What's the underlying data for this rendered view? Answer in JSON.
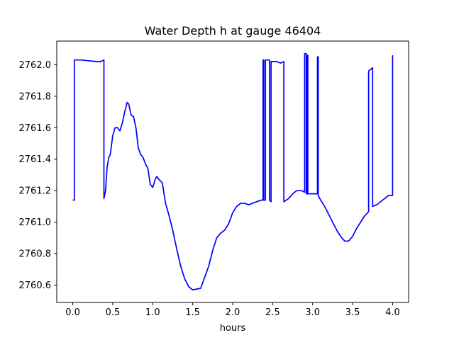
{
  "chart_data": {
    "type": "line",
    "title": "Water Depth h at gauge 46404",
    "xlabel": "hours",
    "ylabel": "",
    "xlim": [
      -0.2,
      4.2
    ],
    "ylim": [
      2760.49,
      2762.15
    ],
    "x_ticks": [
      0.0,
      0.5,
      1.0,
      1.5,
      2.0,
      2.5,
      3.0,
      3.5,
      4.0
    ],
    "x_tick_labels": [
      "0.0",
      "0.5",
      "1.0",
      "1.5",
      "2.0",
      "2.5",
      "3.0",
      "3.5",
      "4.0"
    ],
    "y_ticks": [
      2760.6,
      2760.8,
      2761.0,
      2761.2,
      2761.4,
      2761.6,
      2761.8,
      2762.0
    ],
    "y_tick_labels": [
      "2760.6",
      "2760.8",
      "2761.0",
      "2761.2",
      "2761.4",
      "2761.6",
      "2761.8",
      "2762.0"
    ],
    "grid": false,
    "series": [
      {
        "color": "#0000ff",
        "points": [
          [
            0.0,
            2761.14
          ],
          [
            0.02,
            2761.14
          ],
          [
            0.02,
            2762.03
          ],
          [
            0.1,
            2762.03
          ],
          [
            0.2,
            2762.025
          ],
          [
            0.3,
            2762.02
          ],
          [
            0.35,
            2762.02
          ],
          [
            0.39,
            2762.03
          ],
          [
            0.39,
            2761.15
          ],
          [
            0.41,
            2761.2
          ],
          [
            0.43,
            2761.35
          ],
          [
            0.45,
            2761.41
          ],
          [
            0.47,
            2761.43
          ],
          [
            0.5,
            2761.55
          ],
          [
            0.53,
            2761.6
          ],
          [
            0.56,
            2761.6
          ],
          [
            0.59,
            2761.58
          ],
          [
            0.62,
            2761.63
          ],
          [
            0.65,
            2761.7
          ],
          [
            0.68,
            2761.76
          ],
          [
            0.7,
            2761.75
          ],
          [
            0.73,
            2761.68
          ],
          [
            0.76,
            2761.67
          ],
          [
            0.79,
            2761.6
          ],
          [
            0.82,
            2761.47
          ],
          [
            0.85,
            2761.43
          ],
          [
            0.88,
            2761.41
          ],
          [
            0.91,
            2761.37
          ],
          [
            0.94,
            2761.34
          ],
          [
            0.97,
            2761.24
          ],
          [
            1.0,
            2761.22
          ],
          [
            1.03,
            2761.27
          ],
          [
            1.05,
            2761.29
          ],
          [
            1.08,
            2761.27
          ],
          [
            1.12,
            2761.25
          ],
          [
            1.16,
            2761.12
          ],
          [
            1.2,
            2761.05
          ],
          [
            1.25,
            2760.95
          ],
          [
            1.3,
            2760.83
          ],
          [
            1.35,
            2760.72
          ],
          [
            1.4,
            2760.64
          ],
          [
            1.45,
            2760.59
          ],
          [
            1.5,
            2760.57
          ],
          [
            1.55,
            2760.575
          ],
          [
            1.6,
            2760.58
          ],
          [
            1.65,
            2760.65
          ],
          [
            1.7,
            2760.72
          ],
          [
            1.75,
            2760.82
          ],
          [
            1.8,
            2760.9
          ],
          [
            1.85,
            2760.93
          ],
          [
            1.9,
            2760.95
          ],
          [
            1.95,
            2760.99
          ],
          [
            2.0,
            2761.06
          ],
          [
            2.05,
            2761.1
          ],
          [
            2.1,
            2761.12
          ],
          [
            2.15,
            2761.12
          ],
          [
            2.2,
            2761.11
          ],
          [
            2.25,
            2761.12
          ],
          [
            2.3,
            2761.13
          ],
          [
            2.36,
            2761.14
          ],
          [
            2.38,
            2761.14
          ],
          [
            2.38,
            2762.03
          ],
          [
            2.39,
            2762.03
          ],
          [
            2.39,
            2761.14
          ],
          [
            2.41,
            2761.14
          ],
          [
            2.41,
            2762.03
          ],
          [
            2.46,
            2762.03
          ],
          [
            2.46,
            2761.14
          ],
          [
            2.48,
            2761.13
          ],
          [
            2.48,
            2762.02
          ],
          [
            2.55,
            2762.02
          ],
          [
            2.6,
            2762.01
          ],
          [
            2.64,
            2762.02
          ],
          [
            2.64,
            2761.13
          ],
          [
            2.7,
            2761.15
          ],
          [
            2.75,
            2761.18
          ],
          [
            2.8,
            2761.2
          ],
          [
            2.86,
            2761.2
          ],
          [
            2.9,
            2761.19
          ],
          [
            2.9,
            2762.07
          ],
          [
            2.92,
            2762.07
          ],
          [
            2.92,
            2761.18
          ],
          [
            2.93,
            2761.18
          ],
          [
            2.93,
            2762.06
          ],
          [
            2.94,
            2762.06
          ],
          [
            2.94,
            2761.18
          ],
          [
            3.06,
            2761.18
          ],
          [
            3.06,
            2762.05
          ],
          [
            3.07,
            2762.05
          ],
          [
            3.07,
            2761.17
          ],
          [
            3.1,
            2761.14
          ],
          [
            3.15,
            2761.1
          ],
          [
            3.2,
            2761.05
          ],
          [
            3.25,
            2761.0
          ],
          [
            3.3,
            2760.95
          ],
          [
            3.35,
            2760.91
          ],
          [
            3.4,
            2760.88
          ],
          [
            3.45,
            2760.88
          ],
          [
            3.5,
            2760.91
          ],
          [
            3.55,
            2760.96
          ],
          [
            3.6,
            2761.0
          ],
          [
            3.65,
            2761.04
          ],
          [
            3.69,
            2761.06
          ],
          [
            3.7,
            2761.07
          ],
          [
            3.7,
            2761.96
          ],
          [
            3.75,
            2761.98
          ],
          [
            3.75,
            2761.1
          ],
          [
            3.8,
            2761.11
          ],
          [
            3.85,
            2761.13
          ],
          [
            3.9,
            2761.15
          ],
          [
            3.95,
            2761.17
          ],
          [
            4.0,
            2761.17
          ],
          [
            4.0,
            2762.06
          ]
        ]
      }
    ]
  }
}
